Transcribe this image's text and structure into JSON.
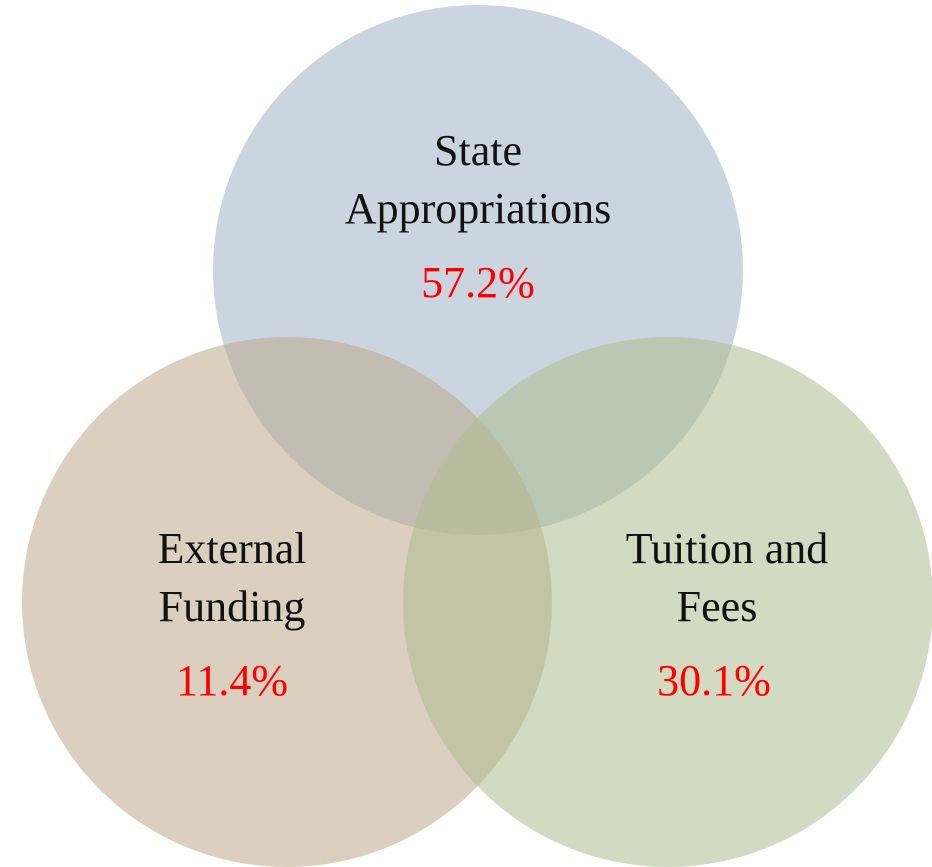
{
  "nodes": [
    {
      "label": [
        "State",
        "Appropriations"
      ],
      "value": "57.2%"
    },
    {
      "label": [
        "External",
        "Funding"
      ],
      "value": "11.4%"
    },
    {
      "label": [
        "Tuition and",
        "Fees"
      ],
      "value": "30.1%"
    }
  ]
}
